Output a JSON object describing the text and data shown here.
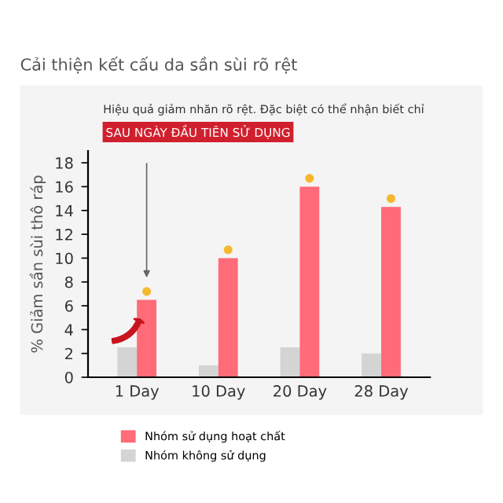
{
  "chart_data": {
    "type": "bar",
    "title": "Cải thiện kết cấu da sần sùi rõ rệt",
    "annotations": [
      "Hiệu quả giảm nhăn rõ rệt. Đặc biệt có thể nhận biết chỉ",
      "SAU NGÀY ĐẦU TIÊN SỬ DỤNG"
    ],
    "ylabel": "% Giảm sần sùi thô ráp",
    "categories": [
      "1 Day",
      "10 Day",
      "20 Day",
      "28 Day"
    ],
    "series": [
      {
        "name": "Nhóm không sử dụng",
        "color": "#d4d4d4",
        "values": [
          2.5,
          1,
          2.5,
          2
        ]
      },
      {
        "name": "Nhóm sử dụng hoạt chất",
        "color": "#ff6b78",
        "values": [
          6.5,
          10,
          16,
          14.3
        ]
      }
    ],
    "ylim": [
      0,
      19
    ],
    "yticks": [
      0,
      2,
      4,
      6,
      8,
      10,
      12,
      14,
      16,
      18
    ],
    "grid": false,
    "legend": "bottom"
  }
}
